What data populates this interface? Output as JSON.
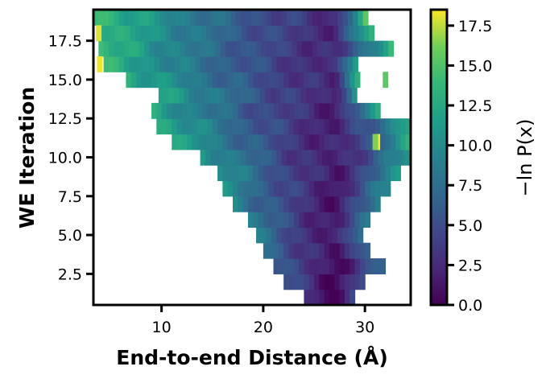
{
  "chart_data": {
    "type": "heatmap",
    "title": "",
    "xlabel": "End-to-end Distance (Å)",
    "ylabel": "WE Iteration",
    "xlim": [
      3.3,
      34.5
    ],
    "ylim": [
      0.5,
      19.5
    ],
    "x_ticks": [
      10,
      20,
      30
    ],
    "x_tick_labels": [
      "10",
      "20",
      "30"
    ],
    "y_ticks": [
      2.5,
      5.0,
      7.5,
      10.0,
      12.5,
      15.0,
      17.5
    ],
    "y_tick_labels": [
      "2.5",
      "5.0",
      "7.5",
      "10.0",
      "12.5",
      "15.0",
      "17.5"
    ],
    "colorbar": {
      "label": "−ln P(x)",
      "colormap": "viridis",
      "range": [
        0,
        18.5
      ],
      "ticks": [
        0.0,
        2.5,
        5.0,
        7.5,
        10.0,
        12.5,
        15.0,
        17.5
      ],
      "tick_labels": [
        "0.0",
        "2.5",
        "5.0",
        "7.5",
        "10.0",
        "12.5",
        "15.0",
        "17.5"
      ]
    },
    "iterations": [
      1,
      2,
      3,
      4,
      5,
      6,
      7,
      8,
      9,
      10,
      11,
      12,
      13,
      14,
      15,
      16,
      17,
      18,
      19
    ],
    "x_extent": [
      [
        24.0,
        28.8
      ],
      [
        22.0,
        30.0
      ],
      [
        21.0,
        31.8
      ],
      [
        20.0,
        30.5
      ],
      [
        19.3,
        29.5
      ],
      [
        18.5,
        30.5
      ],
      [
        17.0,
        31.5
      ],
      [
        16.0,
        32.5
      ],
      [
        15.5,
        33.5
      ],
      [
        13.8,
        34.5
      ],
      [
        11.0,
        34.5
      ],
      [
        9.5,
        34.5
      ],
      [
        9.0,
        31.3
      ],
      [
        9.7,
        29.2
      ],
      [
        6.5,
        29.2
      ],
      [
        4.3,
        29.2
      ],
      [
        3.8,
        32.5
      ],
      [
        3.9,
        30.5
      ],
      [
        3.3,
        30.0
      ]
    ],
    "min_location": 27.0,
    "center_value": [
      0.2,
      0.6,
      0.8,
      1.0,
      1.2,
      1.3,
      1.4,
      1.5,
      1.6,
      1.7,
      1.8,
      1.9,
      2.0,
      2.1,
      2.2,
      2.3,
      2.4,
      2.5,
      2.6
    ],
    "edge_value": [
      3.5,
      6.0,
      7.0,
      8.0,
      8.5,
      9.0,
      9.5,
      10.5,
      11.0,
      11.5,
      12.5,
      13.0,
      12.0,
      12.5,
      13.0,
      13.5,
      14.0,
      14.0,
      14.5
    ],
    "outliers": [
      {
        "iteration": 11,
        "x": 31.2,
        "value": 18.5
      },
      {
        "iteration": 11,
        "x": 31.0,
        "value": 16.5
      },
      {
        "iteration": 16,
        "x": 3.9,
        "value": 18.3
      },
      {
        "iteration": 18,
        "x": 3.8,
        "value": 18.0
      },
      {
        "iteration": 15,
        "x": 32.0,
        "value": 15.5
      }
    ]
  }
}
